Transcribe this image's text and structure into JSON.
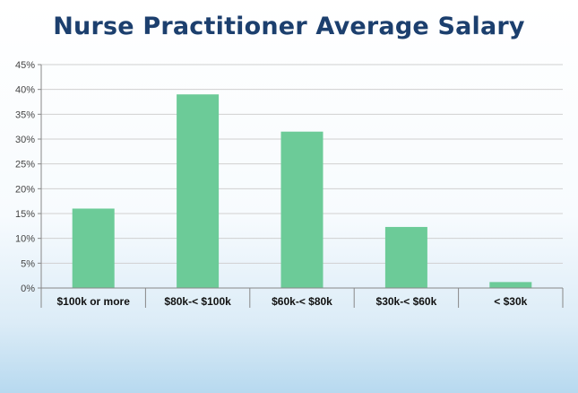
{
  "chart_data": {
    "type": "bar",
    "title": "Nurse Practitioner Average Salary",
    "xlabel": "",
    "ylabel": "",
    "categories": [
      "$100k or more",
      "$80k-< $100k",
      "$60k-< $80k",
      "$30k-< $60k",
      "< $30k"
    ],
    "values": [
      16,
      39,
      31.5,
      12.3,
      1.2
    ],
    "ylim": [
      0,
      45
    ],
    "yticks": [
      "0%",
      "5%",
      "10%",
      "15%",
      "20%",
      "25%",
      "30%",
      "35%",
      "40%",
      "45%"
    ],
    "grid": true,
    "legend": "none",
    "bar_color": "#6ccb98"
  }
}
